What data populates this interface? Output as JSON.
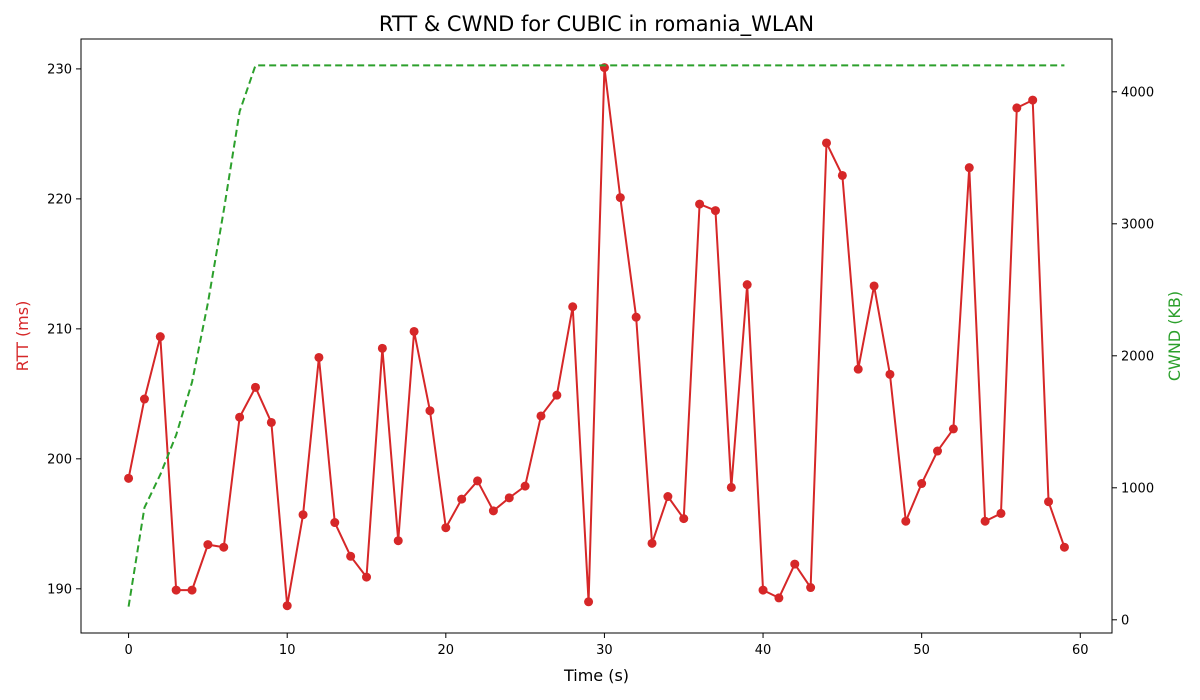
{
  "colors": {
    "rtt": "#d62728",
    "cwnd": "#2ca02c",
    "axis": "#000000"
  },
  "chart_data": {
    "type": "line",
    "title": "RTT & CWND for CUBIC in romania_WLAN",
    "xlabel": "Time (s)",
    "ylabel_left": "RTT (ms)",
    "ylabel_right": "CWND (KB)",
    "xlim": [
      -3,
      62
    ],
    "ylim_left": [
      186.6,
      232.3
    ],
    "ylim_right": [
      -100,
      4400
    ],
    "xticks": [
      0,
      10,
      20,
      30,
      40,
      50,
      60
    ],
    "yticks_left": [
      190,
      200,
      210,
      220,
      230
    ],
    "yticks_right": [
      0,
      1000,
      2000,
      3000,
      4000
    ],
    "grid": false,
    "series": [
      {
        "name": "RTT",
        "axis": "left",
        "style": "solid-markers",
        "x": [
          0,
          1,
          2,
          3,
          4,
          5,
          6,
          7,
          8,
          9,
          10,
          11,
          12,
          13,
          14,
          15,
          16,
          17,
          18,
          19,
          20,
          21,
          22,
          23,
          24,
          25,
          26,
          27,
          28,
          29,
          30,
          31,
          32,
          33,
          34,
          35,
          36,
          37,
          38,
          39,
          40,
          41,
          42,
          43,
          44,
          45,
          46,
          47,
          48,
          49,
          50,
          51,
          52,
          53,
          54,
          55,
          56,
          57,
          58,
          59
        ],
        "values": [
          198.5,
          204.6,
          209.4,
          189.9,
          189.9,
          193.4,
          193.2,
          203.2,
          205.5,
          202.8,
          188.7,
          195.7,
          207.8,
          195.1,
          192.5,
          190.9,
          208.5,
          193.7,
          209.8,
          203.7,
          194.7,
          196.9,
          198.3,
          196.0,
          197.0,
          197.9,
          203.3,
          204.9,
          211.7,
          189.0,
          230.1,
          220.1,
          210.9,
          193.5,
          197.1,
          195.4,
          219.6,
          219.1,
          197.8,
          213.4,
          189.9,
          189.3,
          191.9,
          190.1,
          224.3,
          221.8,
          206.9,
          213.3,
          206.5,
          195.2,
          198.1,
          200.6,
          202.3,
          222.4,
          195.2,
          195.8,
          227.0,
          227.6,
          196.7,
          193.2
        ]
      },
      {
        "name": "CWND",
        "axis": "right",
        "style": "dashed",
        "x": [
          0,
          1,
          2,
          3,
          4,
          5,
          6,
          7,
          8,
          9,
          20,
          30,
          40,
          50,
          59
        ],
        "values": [
          100,
          850,
          1100,
          1400,
          1800,
          2400,
          3100,
          3850,
          4200,
          4200,
          4200,
          4200,
          4200,
          4200,
          4200
        ]
      }
    ]
  }
}
